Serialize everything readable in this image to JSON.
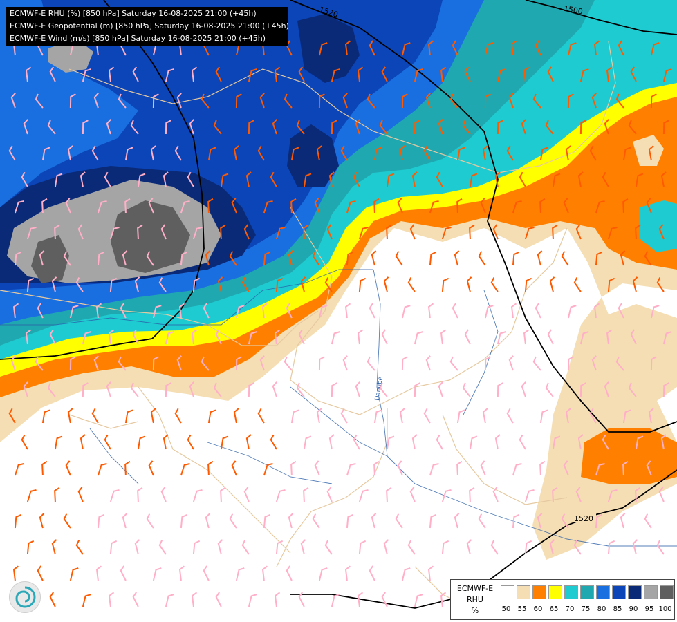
{
  "header": {
    "lines": [
      "ECMWF-E RHU (%) [850 hPa] Saturday 16-08-2025 21:00 (+45h)",
      "ECMWF-E Geopotential (m) [850 hPa] Saturday 16-08-2025 21:00 (+45h)",
      "ECMWF-E Wind (m/s) [850 hPa] Saturday 16-08-2025 21:00 (+45h)"
    ]
  },
  "contour_labels": [
    "1520",
    "1500",
    "1520"
  ],
  "river_label": "Danube",
  "legend": {
    "title_lines": [
      "ECMWF-E",
      "RHU",
      "%"
    ],
    "swatches": [
      {
        "label": "50",
        "color": "#ffffff"
      },
      {
        "label": "55",
        "color": "#f5deb3"
      },
      {
        "label": "60",
        "color": "#ff8000"
      },
      {
        "label": "65",
        "color": "#ffff00"
      },
      {
        "label": "70",
        "color": "#1ecbd0"
      },
      {
        "label": "75",
        "color": "#20a8b0"
      },
      {
        "label": "80",
        "color": "#1a6fe0"
      },
      {
        "label": "85",
        "color": "#0b45b8"
      },
      {
        "label": "90",
        "color": "#0a2a78"
      },
      {
        "label": "95",
        "color": "#a5a5a5"
      },
      {
        "label": "100",
        "color": "#5f5f5f"
      }
    ],
    "last_tick": "100"
  },
  "colors": {
    "white": "#ffffff",
    "wheat": "#f5deb3",
    "orange": "#ff8000",
    "yellow": "#ffff00",
    "cyan": "#1ecbd0",
    "teal": "#20a8b0",
    "blue": "#1a6fe0",
    "medblue": "#0b45b8",
    "navy": "#0a2a78",
    "lightgray": "#a5a5a5",
    "darkgray": "#5f5f5f",
    "border": "#e6c9a0",
    "river": "#2a5fa8",
    "barb_pink": "#ffb0c8",
    "barb_orange": "#ff5a00"
  },
  "logo_icon": "ecmwf-swirl-icon"
}
